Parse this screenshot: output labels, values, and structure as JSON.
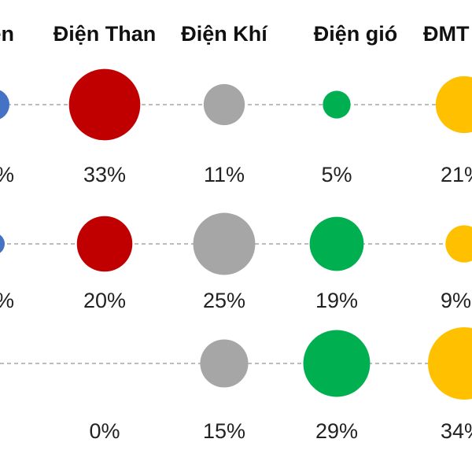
{
  "chart_data": {
    "type": "bubble-matrix",
    "categories": [
      "Thủy điện",
      "Điện Than",
      "Điện Khí",
      "Điện gió",
      "ĐMTMN"
    ],
    "visible_headers": [
      "ện",
      "Điện Than",
      "Điện Khí",
      "Điện gió",
      "ĐMT"
    ],
    "colors": [
      "#4472c4",
      "#c00000",
      "#a6a6a6",
      "#00b050",
      "#ffc000"
    ],
    "rows": [
      {
        "values": [
          null,
          33,
          11,
          5,
          21
        ],
        "labels": [
          "%",
          "33%",
          "11%",
          "5%",
          "21%"
        ]
      },
      {
        "values": [
          null,
          20,
          25,
          19,
          9
        ],
        "labels": [
          "%",
          "20%",
          "25%",
          "19%",
          "9%"
        ]
      },
      {
        "values": [
          null,
          0,
          15,
          29,
          34
        ],
        "labels": [
          "",
          "0%",
          "15%",
          "29%",
          "34%"
        ]
      }
    ]
  }
}
